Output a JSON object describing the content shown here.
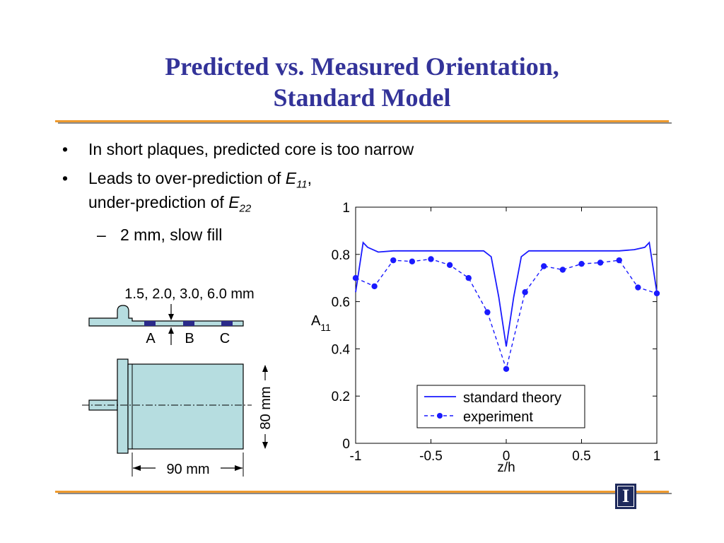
{
  "slide": {
    "title_line1": "Predicted vs. Measured Orientation,",
    "title_line2": "Standard Model",
    "bullet1": "In short plaques, predicted core is too narrow",
    "bullet2_a": "Leads to over-prediction of ",
    "bullet2_var1": "E",
    "bullet2_sub1": "11",
    "bullet2_comma": ",",
    "bullet2_b": "under-prediction of ",
    "bullet2_var2": "E",
    "bullet2_sub2": "22",
    "sub_bullet": "2 mm, slow fill",
    "bullet_symbol": "•",
    "dash_symbol": "–",
    "logo_letter": "I"
  },
  "diagram": {
    "thickness_label": "1.5, 2.0, 3.0, 6.0 mm",
    "point_a": "A",
    "point_b": "B",
    "point_c": "C",
    "height_label": "80 mm",
    "width_label": "90 mm"
  },
  "chart_data": {
    "type": "line",
    "xlabel": "z/h",
    "ylabel": "A",
    "ylabel_sub": "11",
    "xlim": [
      -1,
      1
    ],
    "ylim": [
      0,
      1
    ],
    "x_ticks": [
      -1,
      -0.5,
      0,
      0.5,
      1
    ],
    "x_tick_labels": [
      "-1",
      "-0.5",
      "0",
      "0.5",
      "1"
    ],
    "y_ticks": [
      0,
      0.2,
      0.4,
      0.6,
      0.8,
      1
    ],
    "y_tick_labels": [
      "0",
      "0.2",
      "0.4",
      "0.6",
      "0.8",
      "1"
    ],
    "legend_position": "bottom-right",
    "grid": false,
    "series": [
      {
        "name": "standard theory",
        "color": "#1a1aff",
        "style": "solid",
        "x": [
          -1,
          -0.95,
          -0.92,
          -0.85,
          -0.75,
          -0.5,
          -0.25,
          -0.15,
          -0.1,
          -0.05,
          0,
          0.05,
          0.1,
          0.15,
          0.25,
          0.5,
          0.75,
          0.85,
          0.92,
          0.95,
          1
        ],
        "y": [
          0.64,
          0.85,
          0.83,
          0.81,
          0.815,
          0.815,
          0.815,
          0.815,
          0.79,
          0.62,
          0.41,
          0.62,
          0.79,
          0.815,
          0.815,
          0.815,
          0.815,
          0.82,
          0.83,
          0.85,
          0.64
        ]
      },
      {
        "name": "experiment",
        "color": "#1a1aff",
        "style": "dashed-markers",
        "x": [
          -1,
          -0.875,
          -0.75,
          -0.625,
          -0.5,
          -0.375,
          -0.25,
          -0.125,
          0,
          0.125,
          0.25,
          0.375,
          0.5,
          0.625,
          0.75,
          0.875,
          1
        ],
        "y": [
          0.7,
          0.665,
          0.775,
          0.77,
          0.78,
          0.755,
          0.7,
          0.555,
          0.315,
          0.64,
          0.75,
          0.735,
          0.76,
          0.765,
          0.775,
          0.66,
          0.635
        ]
      }
    ]
  }
}
